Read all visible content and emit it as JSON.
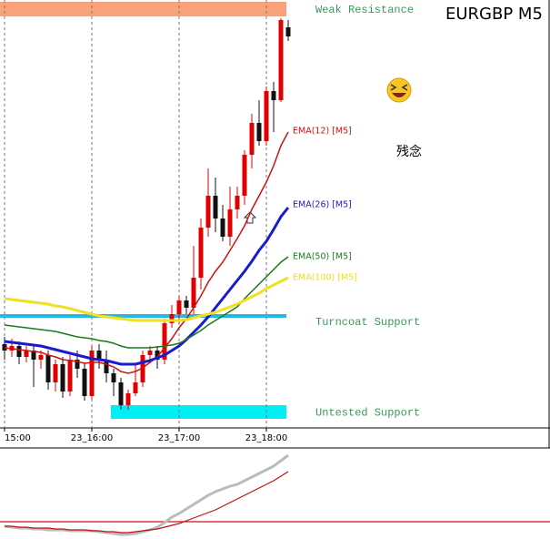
{
  "chart_data": {
    "type": "candlestick",
    "title": "EURGBP M5",
    "annotation": "残念",
    "categories": [
      "15:00",
      null,
      null,
      null,
      null,
      null,
      null,
      null,
      null,
      null,
      null,
      null,
      "23_16:00",
      null,
      null,
      null,
      null,
      null,
      null,
      null,
      null,
      null,
      null,
      null,
      "23_17:00",
      null,
      null,
      null,
      null,
      null,
      null,
      null,
      null,
      null,
      null,
      null,
      "23_18:00",
      null,
      null,
      null
    ],
    "open": [
      92,
      85,
      90,
      78,
      85,
      75,
      80,
      50,
      70,
      40,
      75,
      65,
      35,
      85,
      75,
      60,
      50,
      25,
      38,
      50,
      80,
      85,
      75,
      115,
      125,
      140,
      132,
      165,
      220,
      255,
      230,
      210,
      240,
      255,
      300,
      335,
      315,
      370,
      360,
      440
    ],
    "high": [
      100,
      98,
      95,
      90,
      90,
      85,
      85,
      75,
      78,
      80,
      85,
      72,
      90,
      92,
      85,
      65,
      55,
      42,
      70,
      85,
      90,
      90,
      120,
      135,
      145,
      145,
      200,
      230,
      285,
      275,
      245,
      265,
      265,
      305,
      345,
      360,
      375,
      380,
      450,
      448
    ],
    "low": [
      75,
      78,
      70,
      72,
      45,
      65,
      42,
      40,
      33,
      35,
      55,
      30,
      32,
      65,
      50,
      35,
      20,
      20,
      35,
      45,
      75,
      65,
      70,
      110,
      115,
      125,
      125,
      152,
      210,
      215,
      205,
      200,
      230,
      245,
      285,
      310,
      310,
      325,
      358,
      425
    ],
    "close": [
      85,
      90,
      78,
      85,
      75,
      80,
      50,
      70,
      40,
      75,
      65,
      35,
      85,
      75,
      60,
      50,
      25,
      38,
      50,
      80,
      85,
      75,
      115,
      125,
      140,
      132,
      165,
      220,
      255,
      230,
      210,
      240,
      255,
      300,
      335,
      315,
      370,
      360,
      448,
      430
    ],
    "up_color": "#e00000",
    "down_color": "#111111",
    "ylim": [
      0,
      470
    ],
    "grid": true,
    "series": [
      {
        "name": "EMA(12) [M5]",
        "color": "#d01010",
        "width": 1.5,
        "values": [
          88,
          87,
          86,
          85,
          84,
          83,
          80,
          78,
          75,
          74,
          73,
          71,
          72,
          72,
          70,
          67,
          62,
          60,
          62,
          66,
          72,
          78,
          88,
          98,
          110,
          120,
          132,
          145,
          160,
          172,
          182,
          195,
          208,
          222,
          240,
          255,
          270,
          288,
          310,
          325
        ]
      },
      {
        "name": "EMA(26) [M5]",
        "color": "#1a1ad0",
        "width": 3,
        "values": [
          95,
          94,
          93,
          92,
          91,
          90,
          88,
          86,
          84,
          82,
          80,
          78,
          76,
          75,
          74,
          72,
          70,
          70,
          70,
          72,
          74,
          77,
          80,
          85,
          90,
          97,
          105,
          113,
          122,
          132,
          142,
          152,
          162,
          172,
          183,
          195,
          205,
          218,
          232,
          242
        ]
      },
      {
        "name": "EMA(50) [M5]",
        "color": "#1a7a1a",
        "width": 1.5,
        "values": [
          113,
          112,
          111,
          110,
          109,
          108,
          107,
          106,
          104,
          102,
          100,
          99,
          98,
          96,
          95,
          93,
          90,
          88,
          88,
          88,
          88,
          89,
          90,
          91,
          93,
          97,
          102,
          107,
          113,
          118,
          123,
          128,
          133,
          142,
          150,
          158,
          166,
          174,
          182,
          188
        ]
      },
      {
        "name": "EMA(100) [M5]",
        "color": "#f0e020",
        "width": 3,
        "values": [
          142,
          141,
          140,
          139,
          138,
          137,
          136,
          134,
          133,
          131,
          129,
          127,
          125,
          123,
          122,
          121,
          120,
          119,
          118,
          118,
          118,
          118,
          118,
          118,
          118,
          119,
          121,
          123,
          125,
          127,
          130,
          133,
          136,
          140,
          144,
          148,
          153,
          157,
          161,
          165
        ]
      }
    ],
    "zones": [
      {
        "label": "Weak Resistance",
        "low": 452,
        "high": 468,
        "color": "#f9a27a",
        "label_color": "#3a9a5a"
      },
      {
        "label": "Turncoat Support",
        "low": 121,
        "high": 125,
        "color": "#22b8e8",
        "label_color": "#3a9a5a"
      },
      {
        "label": "Untested Support",
        "low": 10,
        "high": 25,
        "color": "#00eef4",
        "label_color": "#3a9a5a"
      }
    ],
    "indicator": {
      "ylim": [
        0,
        97
      ],
      "level": 19,
      "level_color": "#d01010",
      "series": [
        {
          "color": "#bbbbbb",
          "width": 3,
          "values": [
            14,
            13,
            12,
            12,
            11,
            11,
            10,
            10,
            10,
            9,
            9,
            9,
            9,
            8,
            7,
            6,
            5,
            5,
            6,
            8,
            10,
            13,
            18,
            24,
            28,
            33,
            38,
            43,
            48,
            52,
            55,
            58,
            60,
            64,
            68,
            72,
            76,
            80,
            86,
            92
          ]
        },
        {
          "color": "#c01010",
          "width": 1.2,
          "values": [
            14,
            14,
            13,
            13,
            12,
            12,
            12,
            11,
            11,
            10,
            10,
            10,
            9,
            9,
            8,
            8,
            7,
            7,
            8,
            9,
            10,
            11,
            13,
            15,
            17,
            20,
            23,
            26,
            29,
            32,
            36,
            40,
            44,
            48,
            52,
            56,
            60,
            64,
            69,
            74
          ]
        }
      ]
    }
  }
}
